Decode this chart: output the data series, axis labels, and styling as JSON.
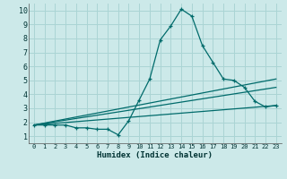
{
  "title": "",
  "xlabel": "Humidex (Indice chaleur)",
  "ylabel": "",
  "bg_color": "#cce9e9",
  "grid_color": "#aad4d4",
  "line_color": "#006b6b",
  "xlim": [
    -0.5,
    23.5
  ],
  "ylim": [
    0.5,
    10.5
  ],
  "yticks": [
    1,
    2,
    3,
    4,
    5,
    6,
    7,
    8,
    9,
    10
  ],
  "xticks": [
    0,
    1,
    2,
    3,
    4,
    5,
    6,
    7,
    8,
    9,
    10,
    11,
    12,
    13,
    14,
    15,
    16,
    17,
    18,
    19,
    20,
    21,
    22,
    23
  ],
  "series": {
    "main": {
      "x": [
        0,
        1,
        2,
        3,
        4,
        5,
        6,
        7,
        8,
        9,
        10,
        11,
        12,
        13,
        14,
        15,
        16,
        17,
        18,
        19,
        20,
        21,
        22,
        23
      ],
      "y": [
        1.8,
        1.8,
        1.8,
        1.8,
        1.6,
        1.6,
        1.5,
        1.5,
        1.1,
        2.1,
        3.6,
        5.1,
        7.9,
        8.9,
        10.1,
        9.6,
        7.5,
        6.3,
        5.1,
        5.0,
        4.5,
        3.5,
        3.1,
        3.2
      ]
    },
    "line2": {
      "x": [
        0,
        23
      ],
      "y": [
        1.8,
        5.1
      ]
    },
    "line3": {
      "x": [
        0,
        23
      ],
      "y": [
        1.8,
        4.5
      ]
    },
    "line4": {
      "x": [
        0,
        23
      ],
      "y": [
        1.8,
        3.2
      ]
    }
  }
}
